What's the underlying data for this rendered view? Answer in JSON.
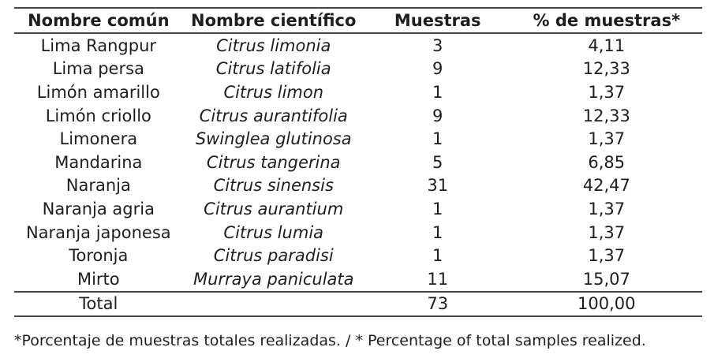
{
  "table": {
    "columns": [
      "Nombre común",
      "Nombre científico",
      "Muestras",
      "% de muestras*"
    ],
    "rows": [
      {
        "common": "Lima Rangpur",
        "scientific": "Citrus limonia",
        "samples": "3",
        "percent": "4,11"
      },
      {
        "common": "Lima persa",
        "scientific": "Citrus latifolia",
        "samples": "9",
        "percent": "12,33"
      },
      {
        "common": "Limón amarillo",
        "scientific": "Citrus limon",
        "samples": "1",
        "percent": "1,37"
      },
      {
        "common": "Limón criollo",
        "scientific": "Citrus aurantifolia",
        "samples": "9",
        "percent": "12,33"
      },
      {
        "common": "Limonera",
        "scientific": "Swinglea glutinosa",
        "samples": "1",
        "percent": "1,37"
      },
      {
        "common": "Mandarina",
        "scientific": "Citrus tangerina",
        "samples": "5",
        "percent": "6,85"
      },
      {
        "common": "Naranja",
        "scientific": "Citrus sinensis",
        "samples": "31",
        "percent": "42,47"
      },
      {
        "common": "Naranja agria",
        "scientific": "Citrus aurantium",
        "samples": "1",
        "percent": "1,37"
      },
      {
        "common": "Naranja japonesa",
        "scientific": "Citrus lumia",
        "samples": "1",
        "percent": "1,37"
      },
      {
        "common": "Toronja",
        "scientific": "Citrus paradisi",
        "samples": "1",
        "percent": "1,37"
      },
      {
        "common": "Mirto",
        "scientific": "Murraya paniculata",
        "samples": "11",
        "percent": "15,07"
      }
    ],
    "total": {
      "label": "Total",
      "scientific": "",
      "samples": "73",
      "percent": "100,00"
    }
  },
  "footnote": "*Porcentaje de muestras totales realizadas. / * Percentage of total samples realized.",
  "colors": {
    "background": "#ffffff",
    "text": "#1e1e1e",
    "rule": "#474747"
  }
}
